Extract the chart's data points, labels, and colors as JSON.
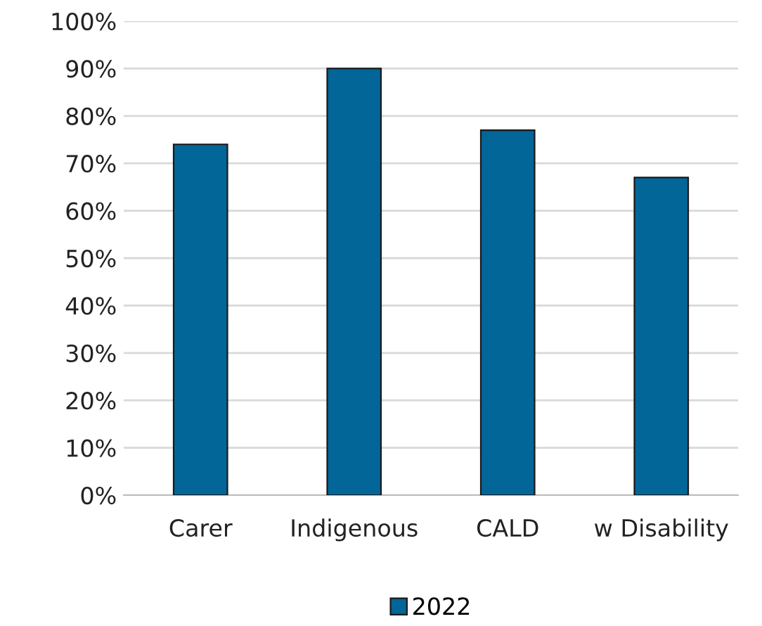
{
  "chart_data": {
    "type": "bar",
    "categories": [
      "Carer",
      "Indigenous",
      "CALD",
      "w Disability"
    ],
    "series": [
      {
        "name": "2022",
        "color": "#036699",
        "values": [
          74,
          90,
          77,
          67
        ]
      }
    ],
    "ylim": [
      0,
      100
    ],
    "yticks": [
      {
        "value": 0,
        "label": "0%"
      },
      {
        "value": 10,
        "label": "10%"
      },
      {
        "value": 20,
        "label": "20%"
      },
      {
        "value": 30,
        "label": "30%"
      },
      {
        "value": 40,
        "label": "40%"
      },
      {
        "value": 50,
        "label": "50%"
      },
      {
        "value": 60,
        "label": "60%"
      },
      {
        "value": 70,
        "label": "70%"
      },
      {
        "value": 80,
        "label": "80%"
      },
      {
        "value": 90,
        "label": "90%"
      },
      {
        "value": 100,
        "label": "100%"
      }
    ],
    "grid": "y",
    "legend": "bottom"
  }
}
